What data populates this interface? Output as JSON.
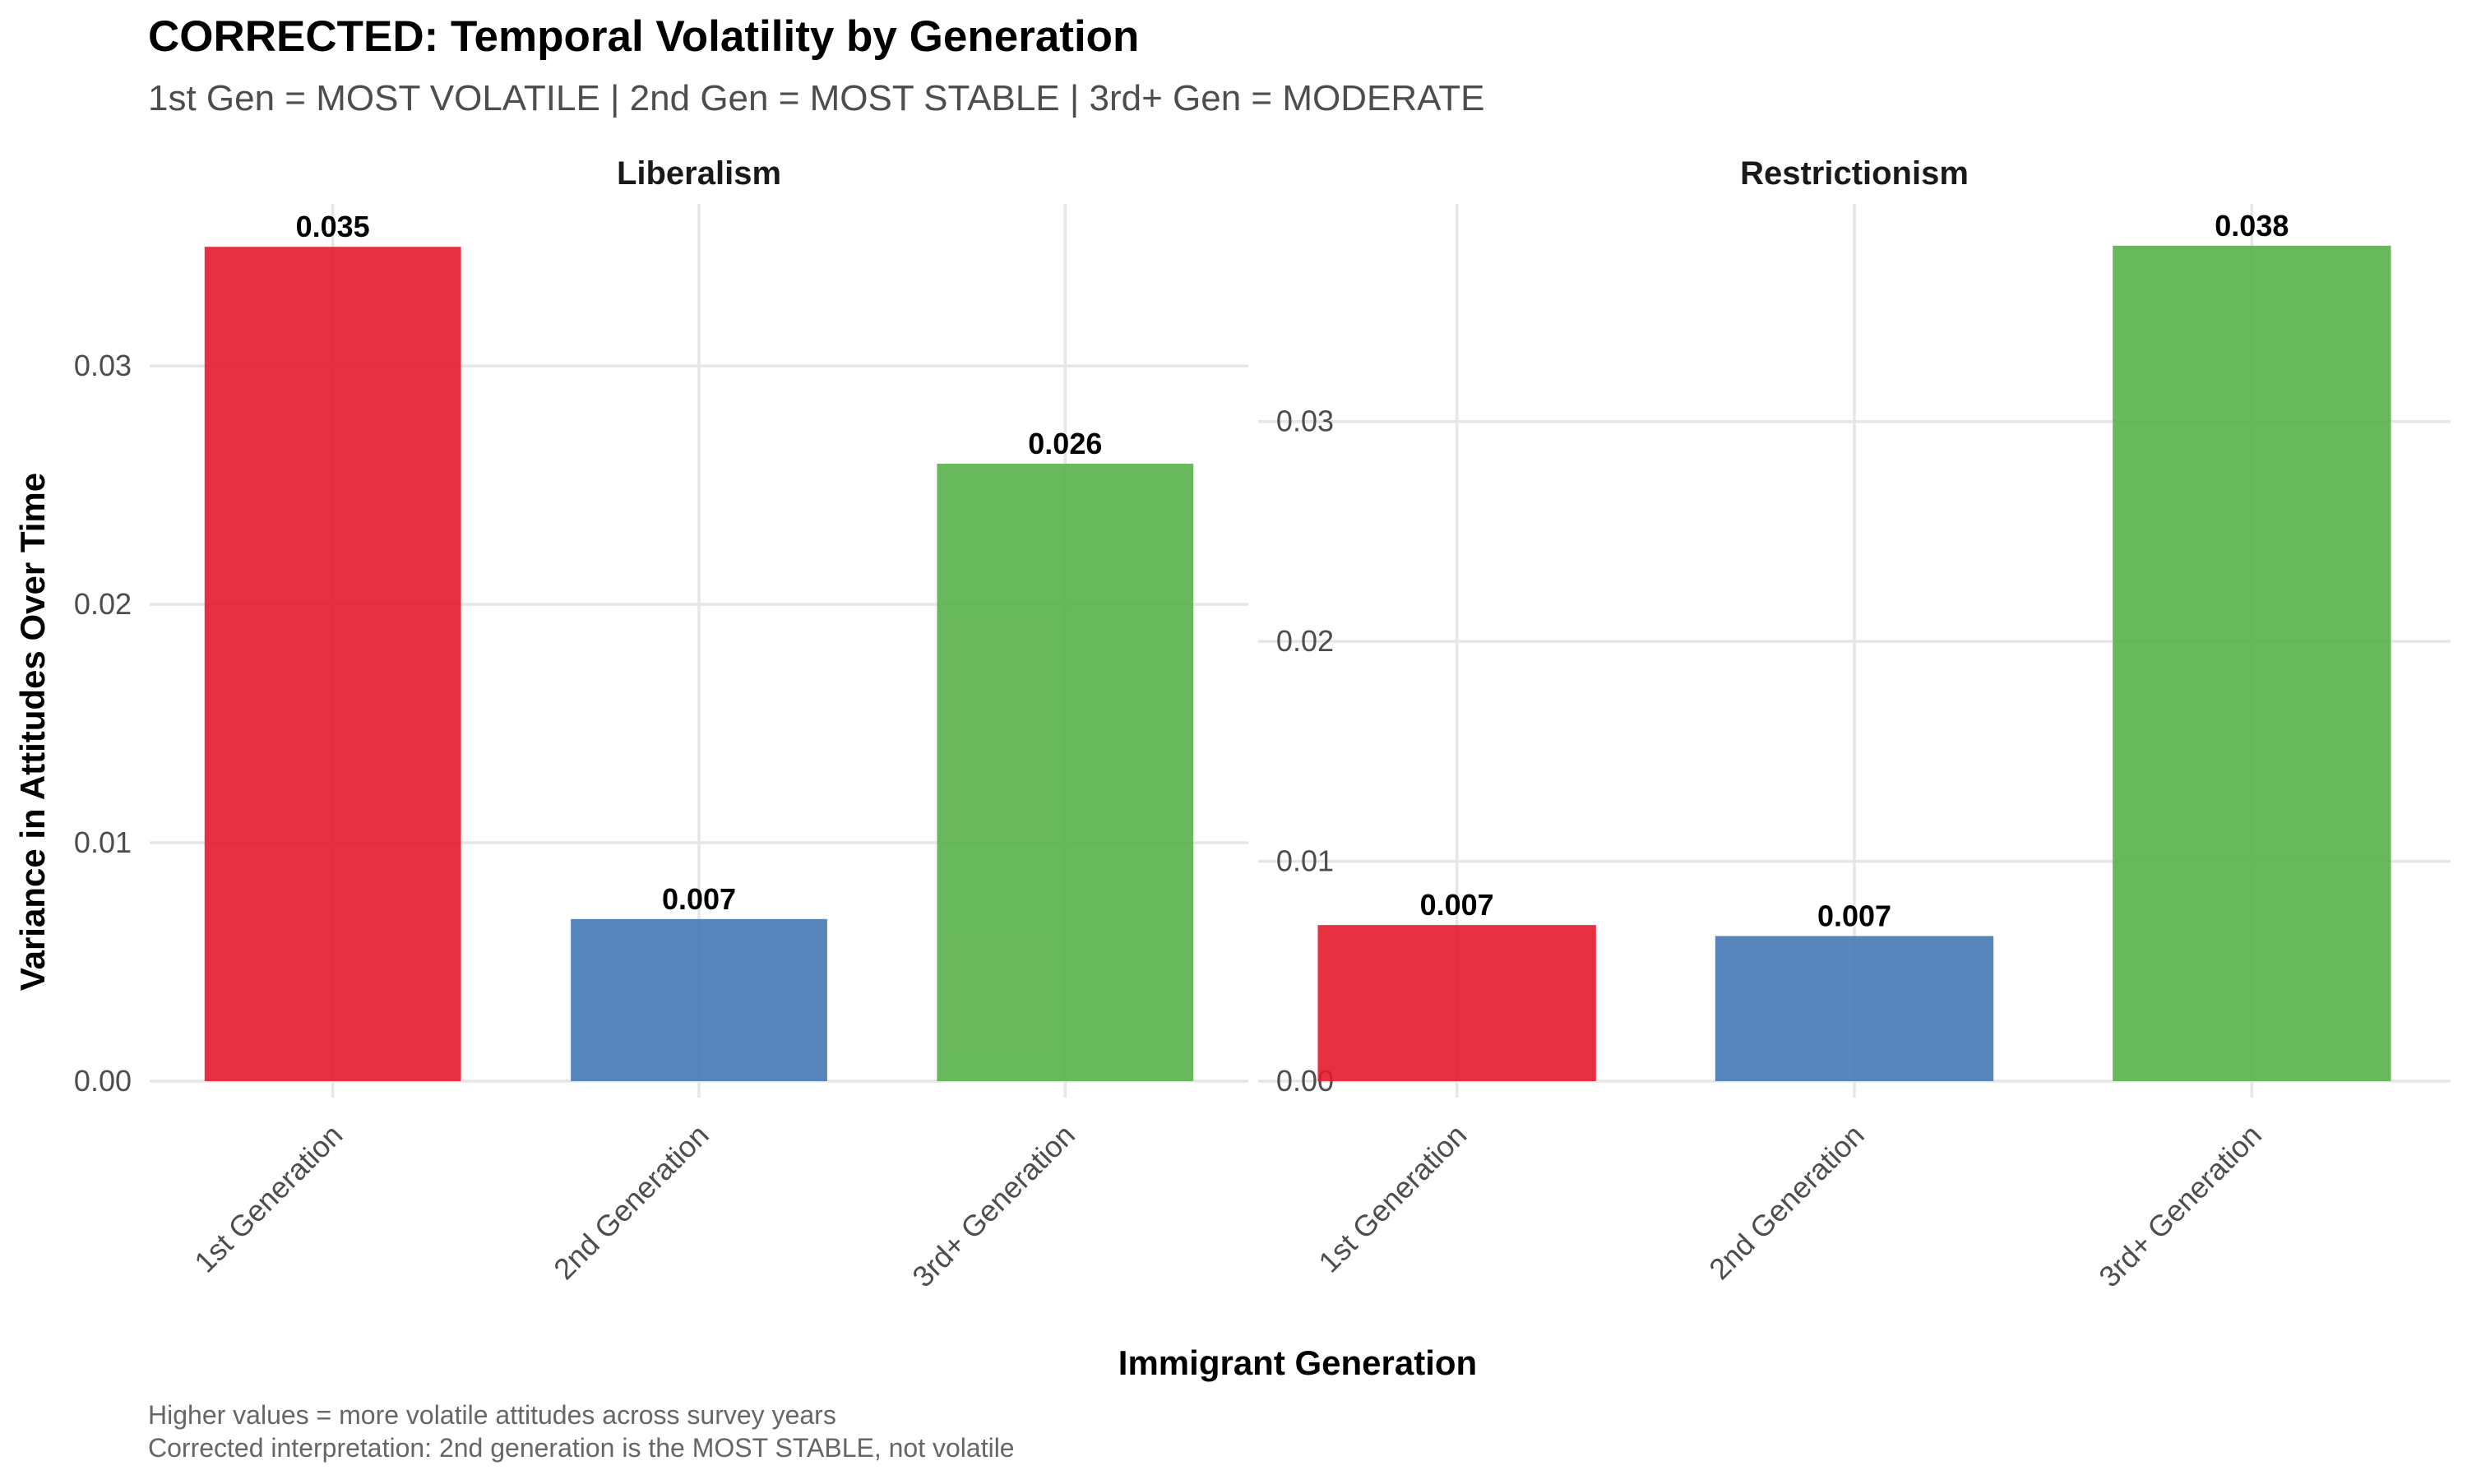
{
  "title": "CORRECTED: Temporal Volatility by Generation",
  "subtitle": "1st Gen = MOST VOLATILE | 2nd Gen = MOST STABLE | 3rd+ Gen = MODERATE",
  "caption": {
    "line1": "Higher values = more volatile attitudes across survey years",
    "line2": "Corrected interpretation: 2nd generation is the MOST STABLE, not volatile"
  },
  "colors": {
    "1st Generation": "#E41A2D",
    "2nd Generation": "#4479B4",
    "3rd+ Generation": "#58B14A",
    "grid": "#e6e6e6",
    "background": "#ffffff"
  },
  "chart_data": [
    {
      "type": "bar",
      "title": "Liberalism",
      "xlabel": "Immigrant Generation",
      "ylabel": "Variance in Attitudes Over Time",
      "categories": [
        "1st Generation",
        "2nd Generation",
        "3rd+ Generation"
      ],
      "values": [
        0.035,
        0.0068,
        0.0259
      ],
      "labels": [
        "0.035",
        "0.007",
        "0.026"
      ],
      "yticks": [
        "0.00",
        "0.01",
        "0.02",
        "0.03"
      ],
      "ylim": [
        0,
        0.0368
      ],
      "grid": true,
      "legend": "none"
    },
    {
      "type": "bar",
      "title": "Restrictionism",
      "xlabel": "Immigrant Generation",
      "ylabel": "Variance in Attitudes Over Time",
      "categories": [
        "1st Generation",
        "2nd Generation",
        "3rd+ Generation"
      ],
      "values": [
        0.0071,
        0.0066,
        0.038
      ],
      "labels": [
        "0.007",
        "0.007",
        "0.038"
      ],
      "yticks": [
        "0.00",
        "0.01",
        "0.02",
        "0.03"
      ],
      "ylim": [
        0,
        0.0399
      ],
      "grid": true,
      "legend": "none"
    }
  ]
}
